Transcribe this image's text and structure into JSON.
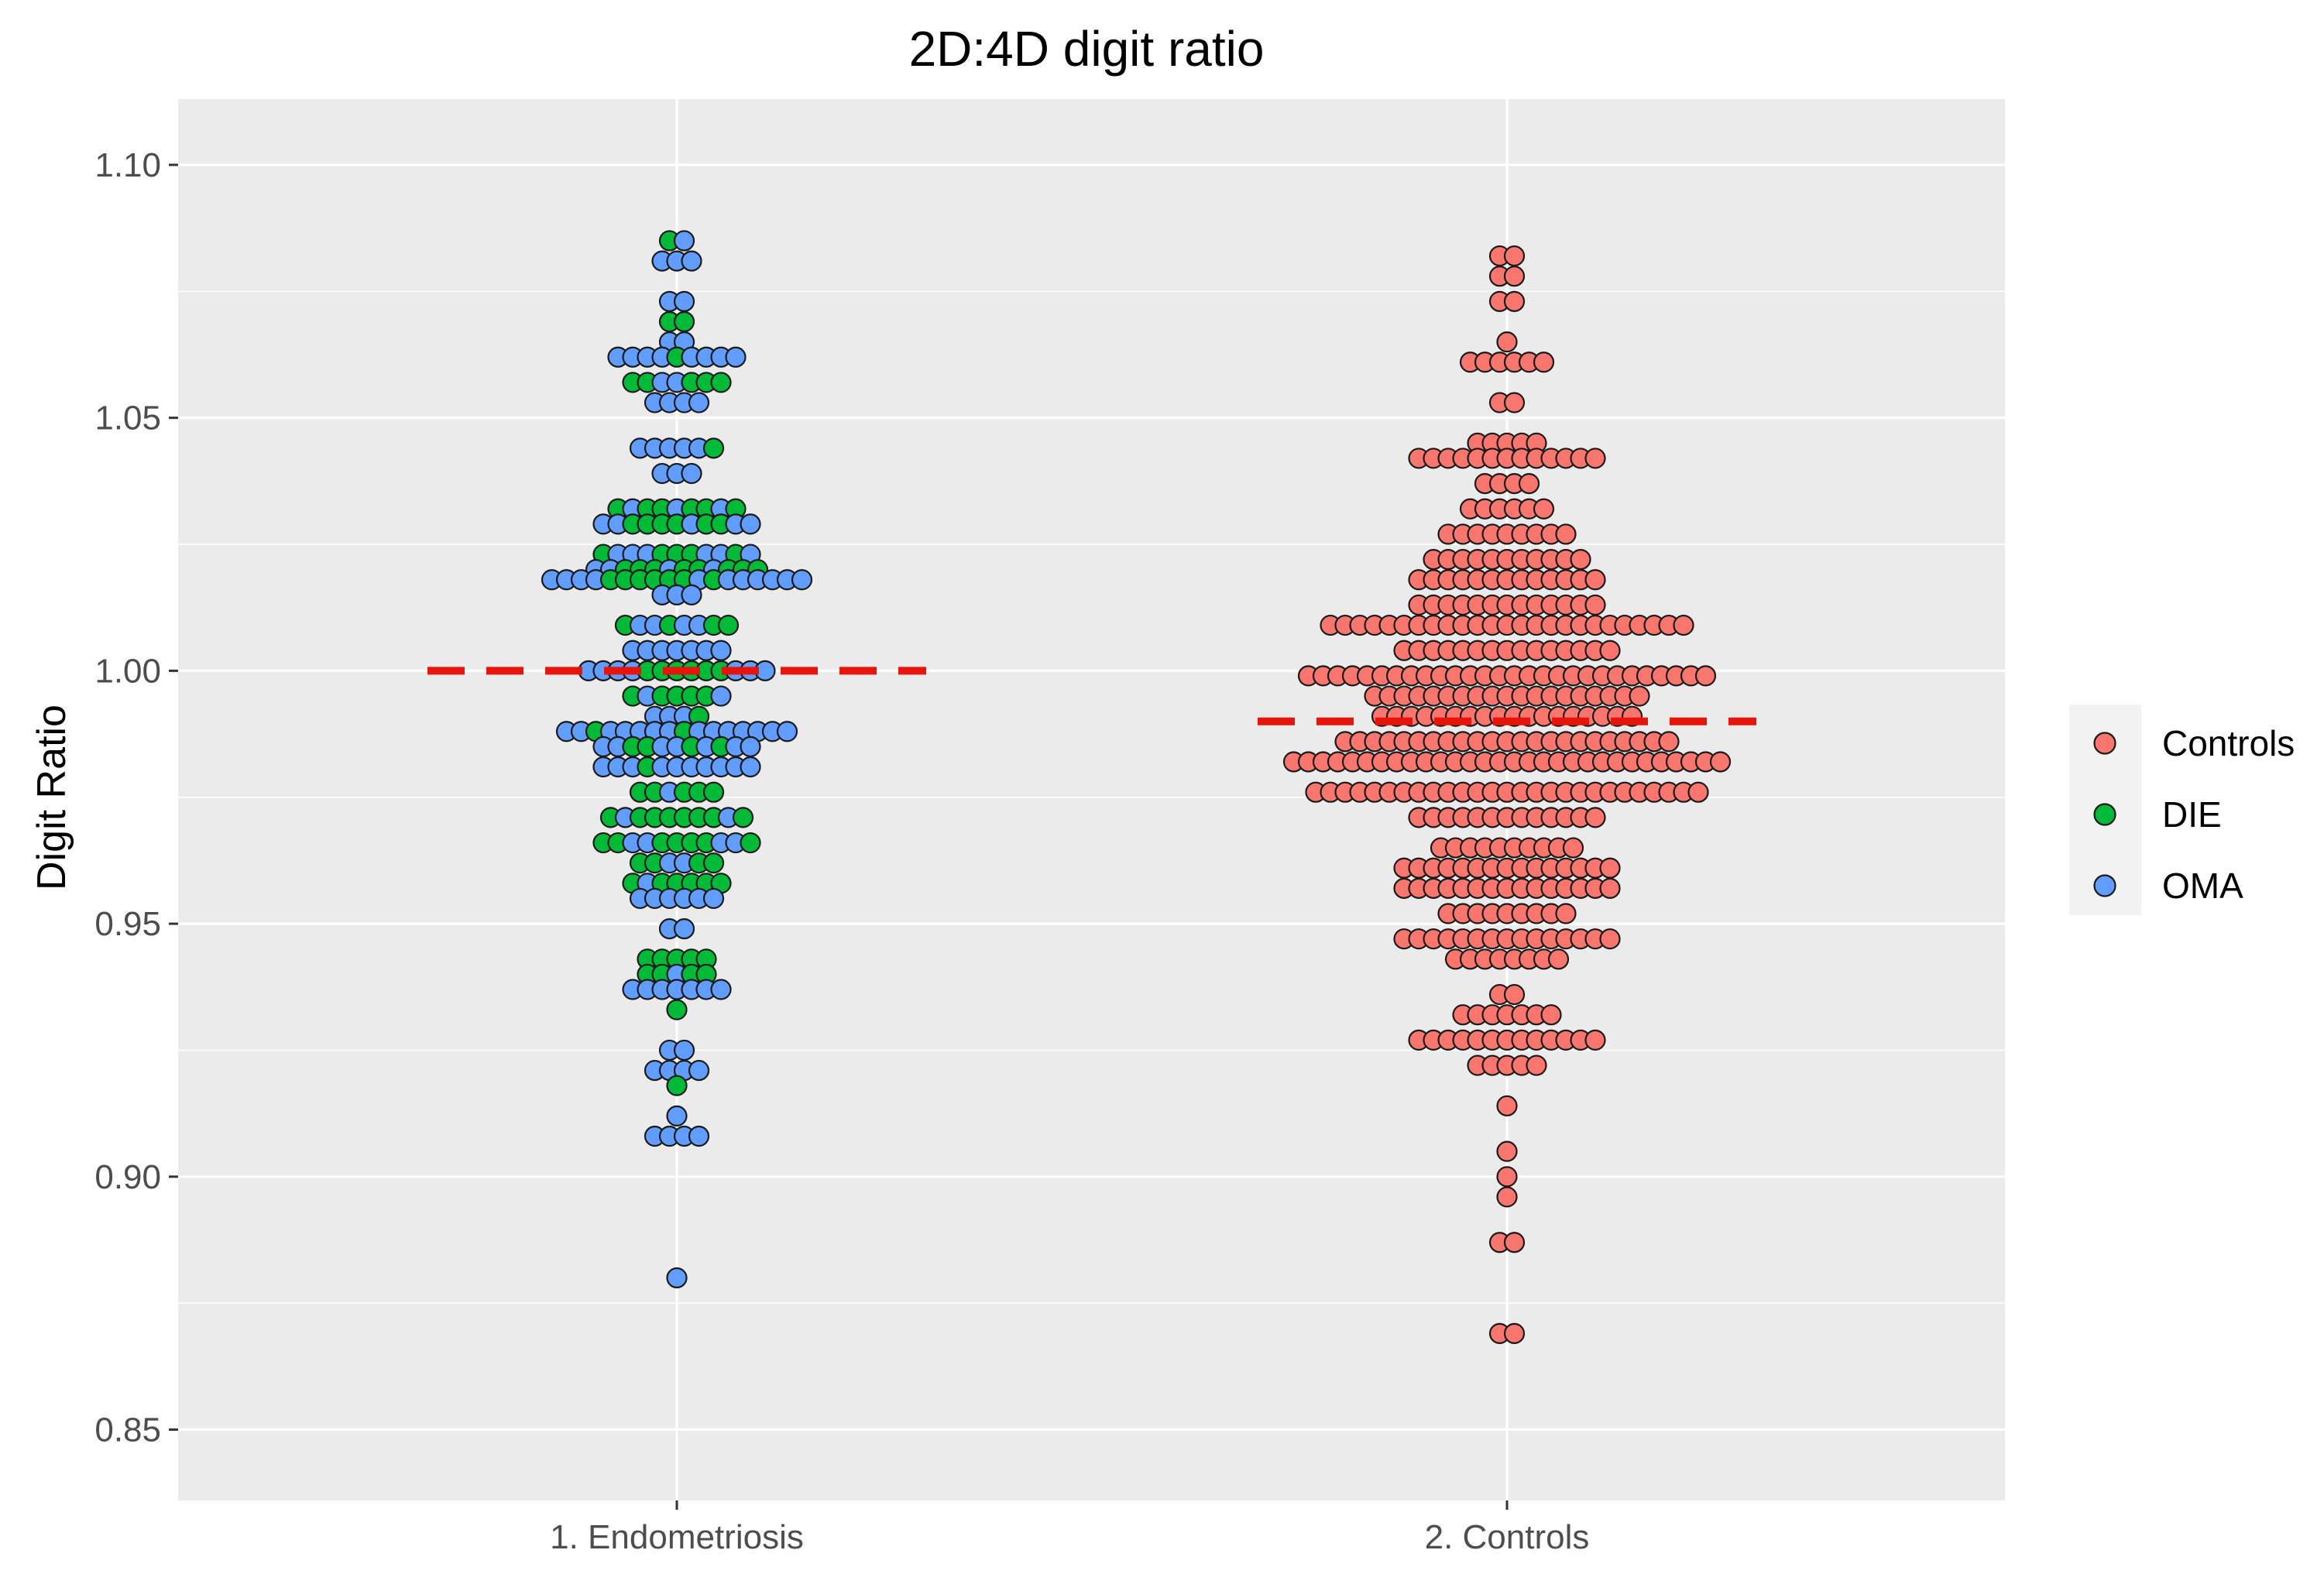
{
  "chart_data": {
    "type": "dotplot",
    "title": "2D:4D digit ratio",
    "xlabel": "",
    "ylabel": "Digit Ratio",
    "ylim": [
      0.836,
      1.113
    ],
    "yticks": [
      0.85,
      0.9,
      0.95,
      1.0,
      1.05,
      1.1
    ],
    "ytick_labels": [
      "0.85",
      "0.90",
      "0.95",
      "1.00",
      "1.05",
      "1.10"
    ],
    "categories": [
      "1. Endometriosis",
      "2. Controls"
    ],
    "grid": true,
    "legend_position": "right",
    "legend": [
      {
        "name": "Controls",
        "color": "#F8766D"
      },
      {
        "name": "DIE",
        "color": "#00BA38"
      },
      {
        "name": "OMA",
        "color": "#619CFF"
      }
    ],
    "reference_lines": [
      {
        "category": "1. Endometriosis",
        "y": 1.0,
        "color": "#E8140C",
        "style": "dashed"
      },
      {
        "category": "2. Controls",
        "y": 0.99,
        "color": "#E8140C",
        "style": "dashed"
      }
    ],
    "series": [
      {
        "category": "1. Endometriosis",
        "bins": [
          {
            "y": 1.085,
            "g": "DO"
          },
          {
            "y": 1.081,
            "g": "OOO"
          },
          {
            "y": 1.073,
            "g": "OO"
          },
          {
            "y": 1.069,
            "g": "DD"
          },
          {
            "y": 1.065,
            "g": "OO"
          },
          {
            "y": 1.062,
            "g": "OOOODOOOO"
          },
          {
            "y": 1.057,
            "g": "DDOODDD"
          },
          {
            "y": 1.053,
            "g": "OOOO"
          },
          {
            "y": 1.044,
            "g": "OOOOOD"
          },
          {
            "y": 1.039,
            "g": "OOO"
          },
          {
            "y": 1.032,
            "g": "DODDODDOD"
          },
          {
            "y": 1.029,
            "g": "OODDDDODDOO"
          },
          {
            "y": 1.023,
            "g": "DOOODDDOODO"
          },
          {
            "y": 1.02,
            "g": "OODDDODDODDD"
          },
          {
            "y": 1.018,
            "g": "OOOODDDDDDODOOOOOO"
          },
          {
            "y": 1.015,
            "g": "OOO"
          },
          {
            "y": 1.009,
            "g": "DOODOODD"
          },
          {
            "y": 1.004,
            "g": "OOOOOOO"
          },
          {
            "y": 1.0,
            "g": "OOOODDDDDDOOO"
          },
          {
            "y": 0.995,
            "g": "DODDDDO"
          },
          {
            "y": 0.991,
            "g": "OOOD"
          },
          {
            "y": 0.988,
            "g": "OODOOOOODOOOOOOO"
          },
          {
            "y": 0.985,
            "g": "OODDOODODOO"
          },
          {
            "y": 0.981,
            "g": "OOODOOOOOOO"
          },
          {
            "y": 0.976,
            "g": "DDODDD"
          },
          {
            "y": 0.971,
            "g": "DODDDDDDOD"
          },
          {
            "y": 0.966,
            "g": "DDOODDDDOOD"
          },
          {
            "y": 0.962,
            "g": "DDOODD"
          },
          {
            "y": 0.958,
            "g": "DODDDDD"
          },
          {
            "y": 0.955,
            "g": "OOOOOO"
          },
          {
            "y": 0.949,
            "g": "OO"
          },
          {
            "y": 0.943,
            "g": "DDDDD"
          },
          {
            "y": 0.94,
            "g": "DDODD"
          },
          {
            "y": 0.937,
            "g": "OOOOOOO"
          },
          {
            "y": 0.933,
            "g": "D"
          },
          {
            "y": 0.925,
            "g": "OO"
          },
          {
            "y": 0.921,
            "g": "OOOO"
          },
          {
            "y": 0.918,
            "g": "D"
          },
          {
            "y": 0.912,
            "g": "O"
          },
          {
            "y": 0.908,
            "g": "OOOO"
          },
          {
            "y": 0.88,
            "g": "O"
          }
        ]
      },
      {
        "category": "2. Controls",
        "bins": [
          {
            "y": 1.082,
            "g": "CC"
          },
          {
            "y": 1.078,
            "g": "CC"
          },
          {
            "y": 1.073,
            "g": "CC"
          },
          {
            "y": 1.065,
            "g": "C"
          },
          {
            "y": 1.061,
            "g": "CCCCCC"
          },
          {
            "y": 1.053,
            "g": "CC"
          },
          {
            "y": 1.045,
            "g": "CCCCC"
          },
          {
            "y": 1.042,
            "g": "CCCCCCCCCCCCC"
          },
          {
            "y": 1.037,
            "g": "CCCC"
          },
          {
            "y": 1.032,
            "g": "CCCCCC"
          },
          {
            "y": 1.027,
            "g": "CCCCCCCCC"
          },
          {
            "y": 1.022,
            "g": "CCCCCCCCCCC"
          },
          {
            "y": 1.018,
            "g": "CCCCCCCCCCCCC"
          },
          {
            "y": 1.013,
            "g": "CCCCCCCCCCCCC"
          },
          {
            "y": 1.009,
            "g": "CCCCCCCCCCCCCCCCCCCCCCCCC"
          },
          {
            "y": 1.004,
            "g": "CCCCCCCCCCCCCCC"
          },
          {
            "y": 0.999,
            "g": "CCCCCCCCCCCCCCCCCCCCCCCCCCCC"
          },
          {
            "y": 0.995,
            "g": "CCCCCCCCCCCCCCCCCCC"
          },
          {
            "y": 0.991,
            "g": "CCCCCCCCCCCCCCCCCC"
          },
          {
            "y": 0.986,
            "g": "CCCCCCCCCCCCCCCCCCCCCCC"
          },
          {
            "y": 0.982,
            "g": "CCCCCCCCCCCCCCCCCCCCCCCCCCCCCC"
          },
          {
            "y": 0.976,
            "g": "CCCCCCCCCCCCCCCCCCCCCCCCCCC"
          },
          {
            "y": 0.971,
            "g": "CCCCCCCCCCCCC"
          },
          {
            "y": 0.965,
            "g": "CCCCCCCCCC"
          },
          {
            "y": 0.961,
            "g": "CCCCCCCCCCCCCCC"
          },
          {
            "y": 0.957,
            "g": "CCCCCCCCCCCCCCC"
          },
          {
            "y": 0.952,
            "g": "CCCCCCCCC"
          },
          {
            "y": 0.947,
            "g": "CCCCCCCCCCCCCCC"
          },
          {
            "y": 0.943,
            "g": "CCCCCCCC"
          },
          {
            "y": 0.936,
            "g": "CC"
          },
          {
            "y": 0.932,
            "g": "CCCCCCC"
          },
          {
            "y": 0.927,
            "g": "CCCCCCCCCCCCC"
          },
          {
            "y": 0.922,
            "g": "CCCCC"
          },
          {
            "y": 0.914,
            "g": "C"
          },
          {
            "y": 0.905,
            "g": "C"
          },
          {
            "y": 0.9,
            "g": "C"
          },
          {
            "y": 0.896,
            "g": "C"
          },
          {
            "y": 0.887,
            "g": "CC"
          },
          {
            "y": 0.869,
            "g": "CC"
          }
        ]
      }
    ]
  }
}
